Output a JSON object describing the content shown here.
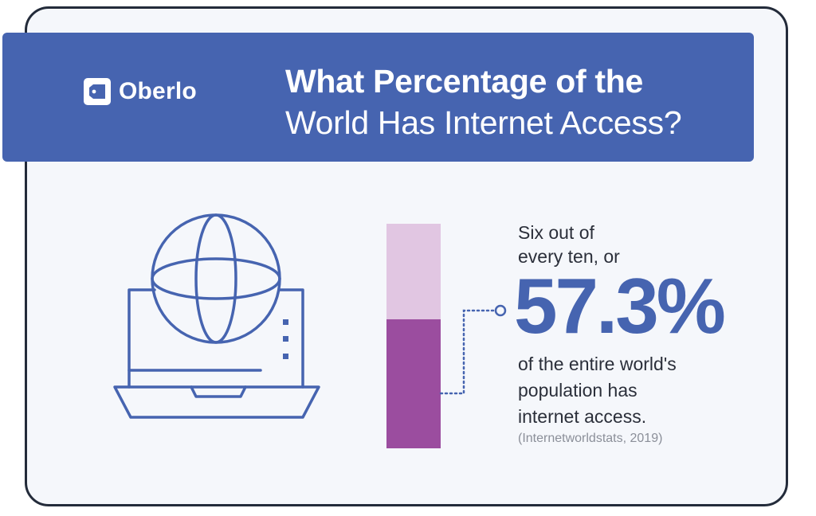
{
  "brand": {
    "name": "Oberlo",
    "icon": "tag-icon"
  },
  "header": {
    "title_line1": "What Percentage of the",
    "title_line2": "World Has Internet Access?"
  },
  "stat": {
    "lead_line1": "Six out of",
    "lead_line2": "every ten, or",
    "value": "57.3%",
    "fraction": 0.573,
    "tail_line1": "of the entire world's",
    "tail_line2": "population has",
    "tail_line3": "internet access.",
    "source": "(Internetworldstats, 2019)"
  },
  "illustration": {
    "icon": "laptop-globe-icon"
  },
  "colors": {
    "banner": "#4664b0",
    "bar_track": "#e1c6e2",
    "bar_fill": "#9b4d9f",
    "accent_text": "#4664b0",
    "body_text": "#2b2f3a",
    "source_text": "#8b8f99",
    "card_border": "#232b3a"
  }
}
